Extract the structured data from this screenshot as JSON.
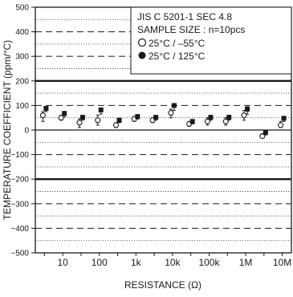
{
  "chart_data": {
    "type": "scatter",
    "xlabel": "RESISTANCE (Ω)",
    "ylabel": "TEMPERATURE COEFFICIENT (ppm/°C)",
    "ylim": [
      -500,
      500
    ],
    "yticks": [
      500,
      400,
      300,
      200,
      100,
      0,
      -100,
      -200,
      -300,
      -400,
      -500
    ],
    "categories": [
      "",
      "10",
      "",
      "100",
      "",
      "1k",
      "",
      "10k",
      "",
      "100k",
      "",
      "1M",
      "",
      "10M"
    ],
    "spec_limits": [
      200,
      -200
    ],
    "legend_placement": "top-right",
    "legend": {
      "lines": [
        "JIS C 5201-1 SEC 4.8",
        "SAMPLE SIZE : n=10pcs"
      ],
      "series_labels": [
        "25°C / –55°C",
        "25°C / 125°C"
      ]
    },
    "series": [
      {
        "name": "25°C / –55°C",
        "marker": "open-circle",
        "color": "#1a1a1a",
        "values": [
          60,
          50,
          30,
          40,
          20,
          45,
          40,
          70,
          25,
          35,
          35,
          60,
          -25,
          20
        ],
        "err_low": [
          35,
          40,
          10,
          20,
          10,
          35,
          30,
          50,
          15,
          20,
          20,
          40,
          -30,
          10
        ],
        "err_high": [
          75,
          60,
          45,
          60,
          30,
          55,
          50,
          85,
          35,
          50,
          50,
          80,
          -15,
          35
        ]
      },
      {
        "name": "25°C / 125°C",
        "marker": "filled-square",
        "color": "#1a1a1a",
        "values": [
          88,
          68,
          52,
          82,
          40,
          55,
          52,
          100,
          35,
          52,
          52,
          85,
          -10,
          48
        ],
        "err_low": [
          75,
          55,
          40,
          65,
          30,
          45,
          40,
          80,
          25,
          40,
          40,
          65,
          -20,
          35
        ],
        "err_high": [
          95,
          75,
          58,
          90,
          48,
          60,
          58,
          105,
          42,
          58,
          60,
          95,
          -5,
          55
        ]
      }
    ],
    "grid": {
      "solid": [
        200,
        0,
        -200
      ],
      "dashed": [
        400,
        300,
        100,
        -100,
        -300,
        -400
      ],
      "dotted": [
        450,
        350,
        250,
        150,
        50,
        -50,
        -150,
        -250,
        -350,
        -450
      ]
    }
  }
}
